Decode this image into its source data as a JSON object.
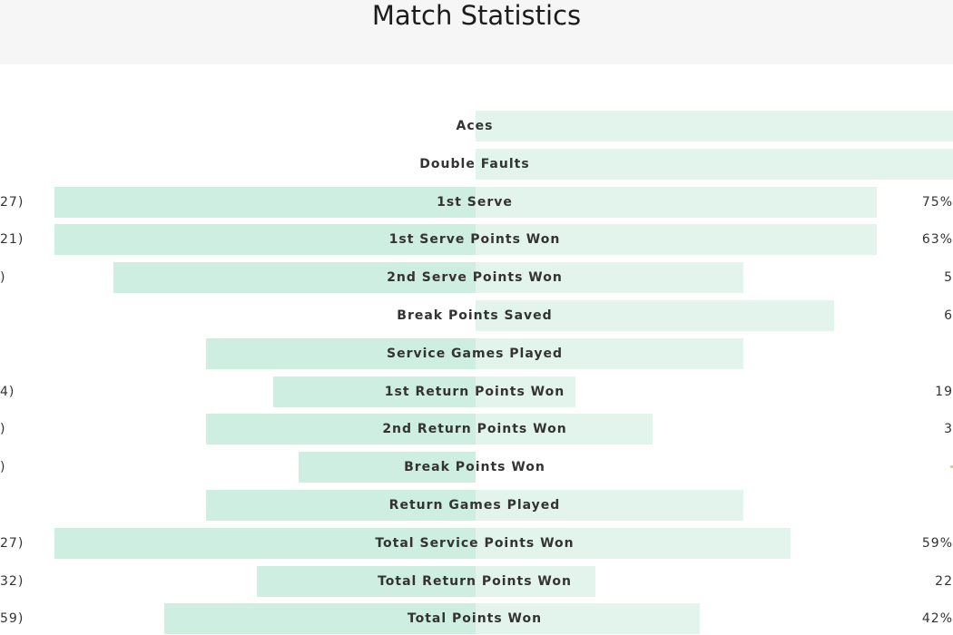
{
  "page": {
    "title": "Match Statistics"
  },
  "colors": {
    "left_bar": "#cfeee2",
    "right_bar": "#e3f4ed",
    "header_bg": "#f6f6f6",
    "text": "#333333"
  },
  "stats": [
    {
      "label": "Aces",
      "left_value": "",
      "right_value": "",
      "left_fraction": 0.0,
      "right_fraction": 1.0
    },
    {
      "label": "Double Faults",
      "left_value": "",
      "right_value": "",
      "left_fraction": 0.0,
      "right_fraction": 1.0
    },
    {
      "label": "1st Serve",
      "left_value": "27)",
      "right_value": "75%",
      "left_fraction": 1.0,
      "right_fraction": 0.84
    },
    {
      "label": "1st Serve Points Won",
      "left_value": "21)",
      "right_value": "63%",
      "left_fraction": 1.0,
      "right_fraction": 0.84
    },
    {
      "label": "2nd Serve Points Won",
      "left_value": ")",
      "right_value": "5",
      "left_fraction": 0.86,
      "right_fraction": 0.56
    },
    {
      "label": "Break Points Saved",
      "left_value": "",
      "right_value": "6",
      "left_fraction": 0.0,
      "right_fraction": 0.75
    },
    {
      "label": "Service Games Played",
      "left_value": "",
      "right_value": "",
      "left_fraction": 0.64,
      "right_fraction": 0.56
    },
    {
      "label": "1st Return Points Won",
      "left_value": "4)",
      "right_value": "19",
      "left_fraction": 0.48,
      "right_fraction": 0.21
    },
    {
      "label": "2nd Return Points Won",
      "left_value": ")",
      "right_value": "3",
      "left_fraction": 0.64,
      "right_fraction": 0.37
    },
    {
      "label": "Break Points Won",
      "left_value": ")",
      "right_value": "",
      "left_fraction": 0.42,
      "right_fraction": 0.0,
      "right_marker": true
    },
    {
      "label": "Return Games Played",
      "left_value": "",
      "right_value": "",
      "left_fraction": 0.64,
      "right_fraction": 0.56
    },
    {
      "label": "Total Service Points Won",
      "left_value": "27)",
      "right_value": "59%",
      "left_fraction": 1.0,
      "right_fraction": 0.66
    },
    {
      "label": "Total Return Points Won",
      "left_value": "32)",
      "right_value": "22",
      "left_fraction": 0.52,
      "right_fraction": 0.25
    },
    {
      "label": "Total Points Won",
      "left_value": "59)",
      "right_value": "42%",
      "left_fraction": 0.74,
      "right_fraction": 0.47
    }
  ]
}
